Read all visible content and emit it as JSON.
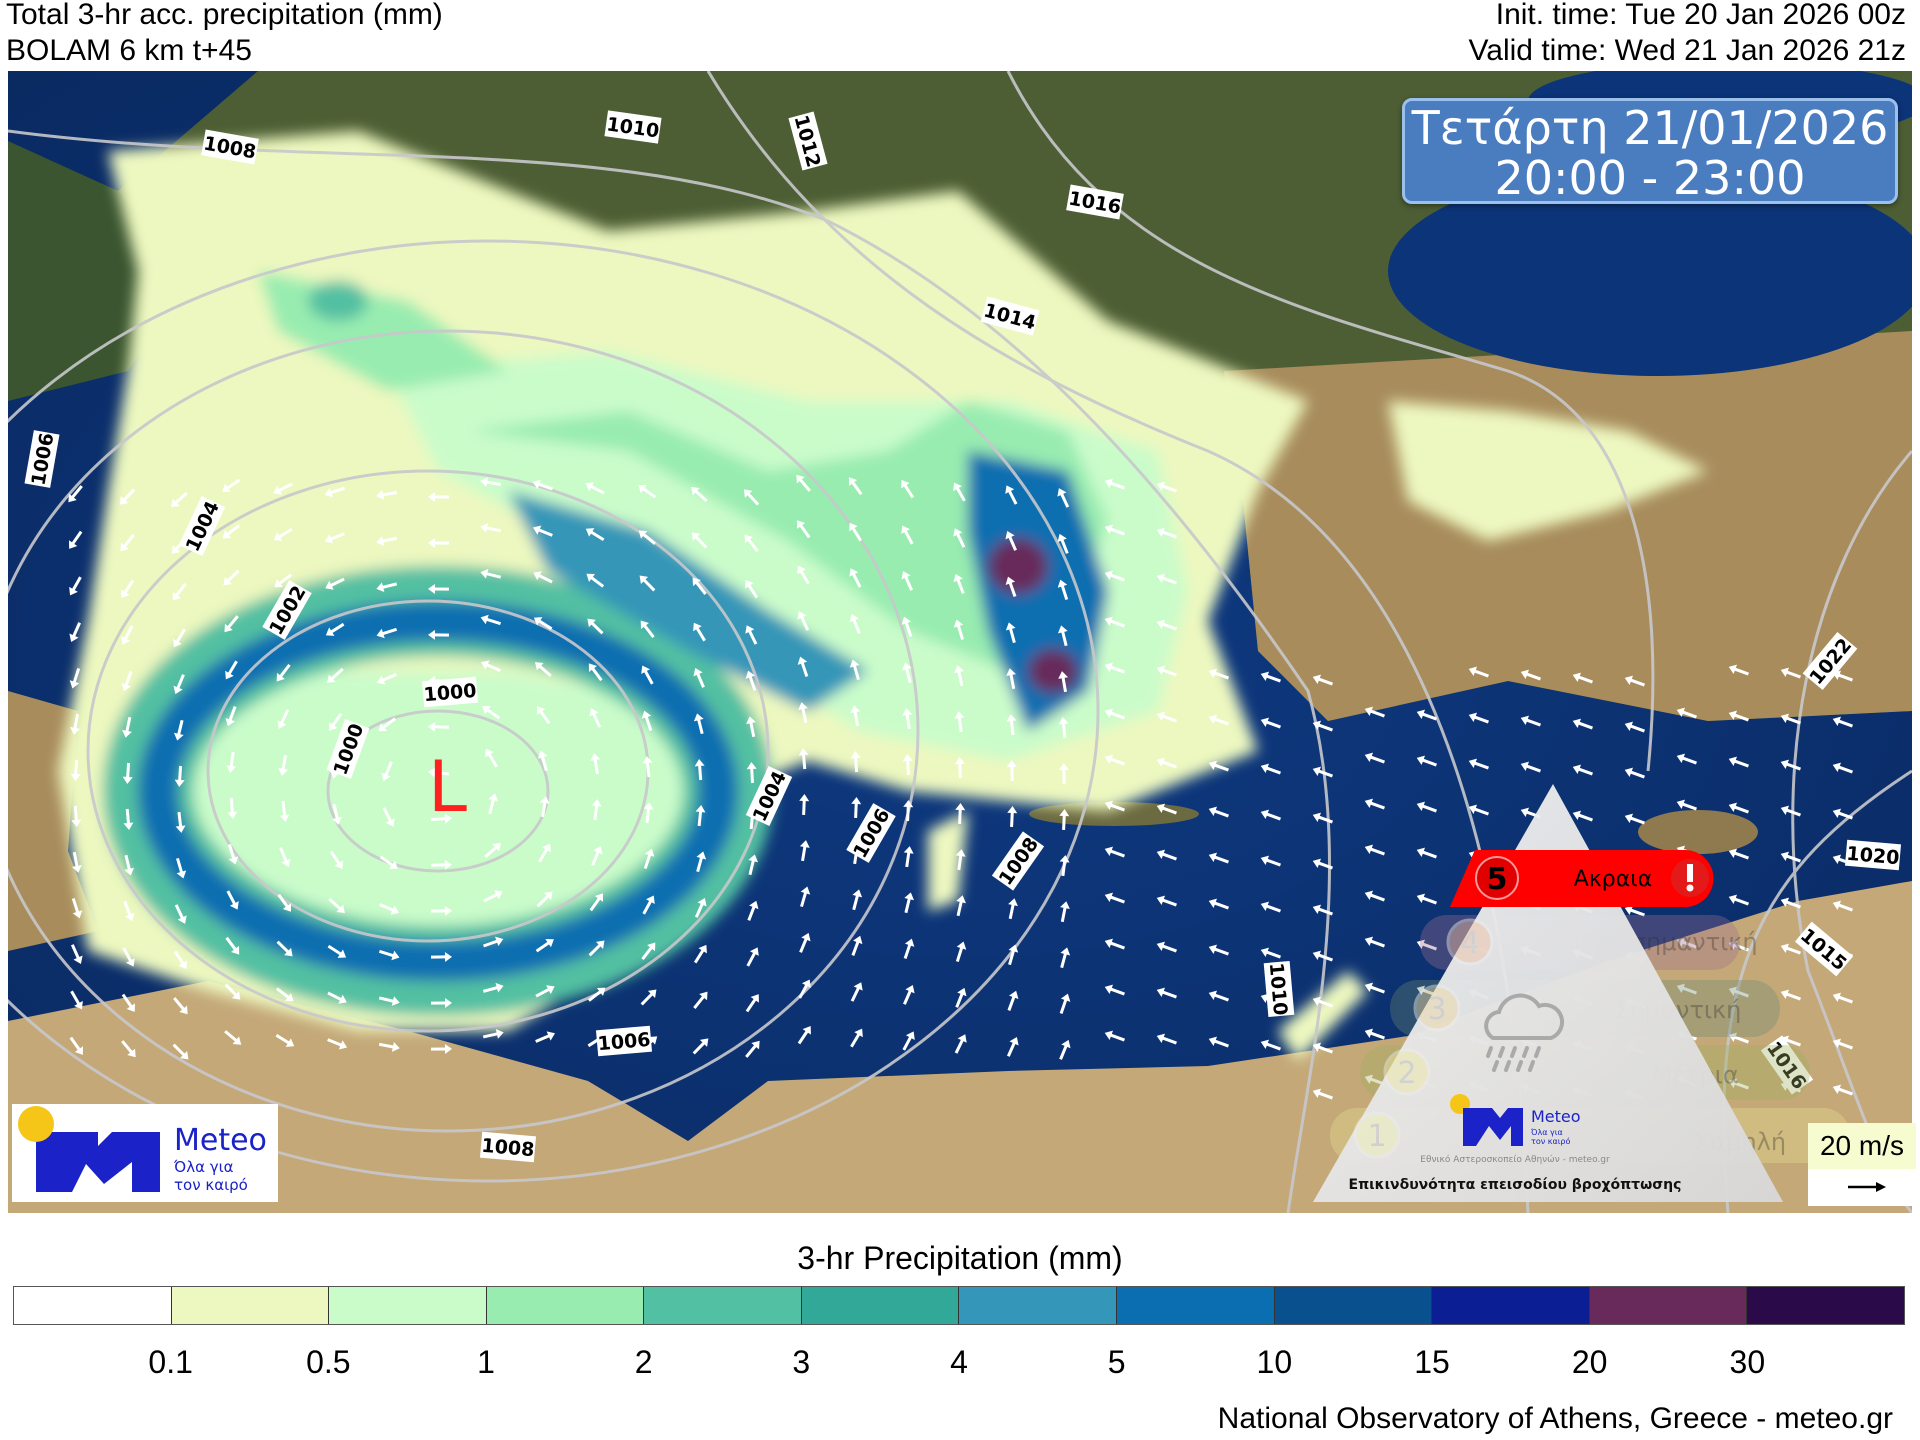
{
  "header": {
    "title": "Total 3-hr acc. precipitation (mm)",
    "model": "BOLAM 6 km t+45",
    "init_time": "Init. time: Tue 20 Jan 2026 00z",
    "valid_time": "Valid time: Wed 21 Jan 2026 21z"
  },
  "date_box": {
    "day": "Τετάρτη 21/01/2026",
    "hours": "20:00 - 23:00"
  },
  "map": {
    "low_label": "L",
    "isobar_labels": [
      "1008",
      "1010",
      "1012",
      "1016",
      "1014",
      "1006",
      "1004",
      "1002",
      "1000",
      "1000",
      "1004",
      "1006",
      "1008",
      "1010",
      "1006",
      "1008",
      "1022",
      "1020",
      "1015",
      "1016"
    ],
    "colors": {
      "sea": "#0b2c6a",
      "land": "#b59a68",
      "land_north": "#3f5a2c",
      "low": "#ff2020"
    }
  },
  "logo": {
    "name": "Meteo",
    "tagline_1": "Όλα για",
    "tagline_2": "τον καιρό",
    "sun_color": "#f5c518",
    "brand_color": "#1a22c8"
  },
  "risk_panel": {
    "title": "Επικινδυνότητα επεισοδίου βροχόπτωσης",
    "org": "Εθνικό Αστεροσκοπείο Αθηνών - meteo.gr",
    "icon": "cloud-rain-icon",
    "active_level": 5,
    "levels": [
      {
        "num": "5",
        "label": "Ακραια",
        "color": "#ff0000"
      },
      {
        "num": "4",
        "label": "Πολύ σημαντική",
        "color": "#f2a878"
      },
      {
        "num": "3",
        "label": "Σημαντική",
        "color": "#f0c880"
      },
      {
        "num": "2",
        "label": "Μέτρια",
        "color": "#eee090"
      },
      {
        "num": "1",
        "label": "Χαμηλή",
        "color": "#eef0a0"
      }
    ]
  },
  "wind_key": {
    "label": "20 m/s",
    "icon": "arrow-right-icon"
  },
  "colorbar": {
    "title": "3-hr Precipitation (mm)",
    "colors": [
      "#ffffff",
      "#edf8c0",
      "#cafcca",
      "#98ecb0",
      "#52c0a2",
      "#32a898",
      "#3496b8",
      "#0a6eb0",
      "#08508e",
      "#0c1e94",
      "#682a5a",
      "#2a0a48"
    ],
    "ticks": [
      "0.1",
      "0.5",
      "1",
      "2",
      "3",
      "4",
      "5",
      "10",
      "15",
      "20",
      "30"
    ]
  },
  "footer": "National Observatory of Athens, Greece - meteo.gr"
}
